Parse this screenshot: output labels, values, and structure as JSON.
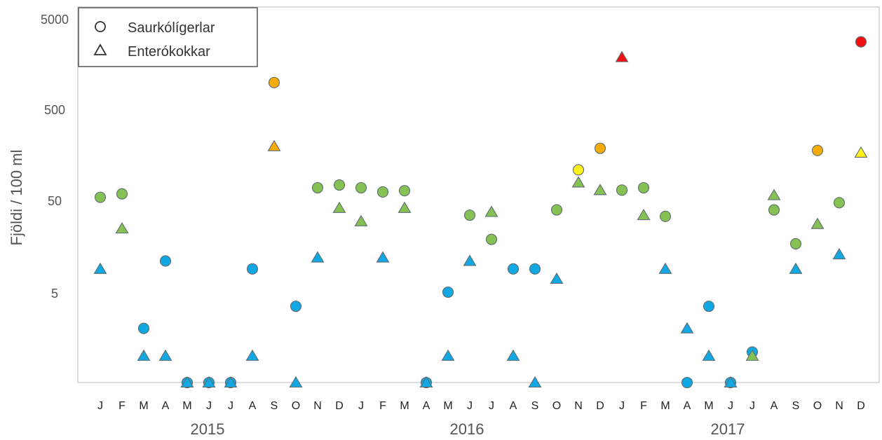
{
  "chart_data": {
    "type": "scatter",
    "ylabel": "Fjöldi / 100 ml",
    "y_scale": "log",
    "y_ticks": [
      "5",
      "50",
      "500",
      "5000"
    ],
    "months": [
      "J",
      "F",
      "M",
      "A",
      "M",
      "J",
      "J",
      "A",
      "S",
      "O",
      "N",
      "D",
      "J",
      "F",
      "M",
      "A",
      "M",
      "J",
      "J",
      "A",
      "S",
      "O",
      "N",
      "D",
      "J",
      "F",
      "M",
      "A",
      "M",
      "J",
      "J",
      "A",
      "S",
      "O",
      "N",
      "D"
    ],
    "years": [
      "2015",
      "2016",
      "2017"
    ],
    "legend": [
      {
        "marker": "circle",
        "name": "Saurkólígerlar"
      },
      {
        "marker": "triangle",
        "name": "Enterókokkar"
      }
    ],
    "colors": {
      "blue": "#12a8e3",
      "green": "#86c253",
      "orange": "#f5ac0b",
      "yellow": "#fdf21c",
      "red": "#ef1111",
      "outline": "#5e6b71"
    },
    "series": [
      {
        "name": "Saurkólígerlar",
        "marker": "circle",
        "values": [
          55,
          60,
          2,
          11,
          0.5,
          0.5,
          0.5,
          9,
          1000,
          3.5,
          70,
          75,
          70,
          63,
          65,
          0.5,
          5,
          35,
          19,
          9,
          9,
          40,
          110,
          190,
          66,
          70,
          34,
          0.5,
          3.5,
          0.5,
          1.1,
          40,
          17,
          180,
          48,
          2800
        ],
        "colors": [
          "green",
          "green",
          "blue",
          "blue",
          "blue",
          "blue",
          "blue",
          "blue",
          "orange",
          "blue",
          "green",
          "green",
          "green",
          "green",
          "green",
          "blue",
          "blue",
          "green",
          "green",
          "blue",
          "blue",
          "green",
          "yellow",
          "orange",
          "green",
          "green",
          "green",
          "blue",
          "blue",
          "blue",
          "blue",
          "green",
          "green",
          "orange",
          "green",
          "red"
        ]
      },
      {
        "name": "Enterókokkar",
        "marker": "triangle",
        "values": [
          9,
          25,
          1,
          1,
          0.5,
          0.5,
          0.5,
          1,
          200,
          0.5,
          12,
          42,
          30,
          12,
          42,
          0.5,
          1,
          11,
          38,
          1,
          0.5,
          7,
          80,
          66,
          1900,
          35,
          9,
          2,
          1,
          0.5,
          1,
          58,
          9,
          28,
          13,
          170
        ],
        "colors": [
          "blue",
          "green",
          "blue",
          "blue",
          "blue",
          "blue",
          "blue",
          "blue",
          "orange",
          "blue",
          "blue",
          "green",
          "green",
          "blue",
          "green",
          "blue",
          "blue",
          "blue",
          "green",
          "blue",
          "blue",
          "blue",
          "green",
          "green",
          "red",
          "green",
          "blue",
          "blue",
          "blue",
          "blue",
          "green",
          "green",
          "blue",
          "green",
          "blue",
          "yellow"
        ]
      }
    ]
  }
}
